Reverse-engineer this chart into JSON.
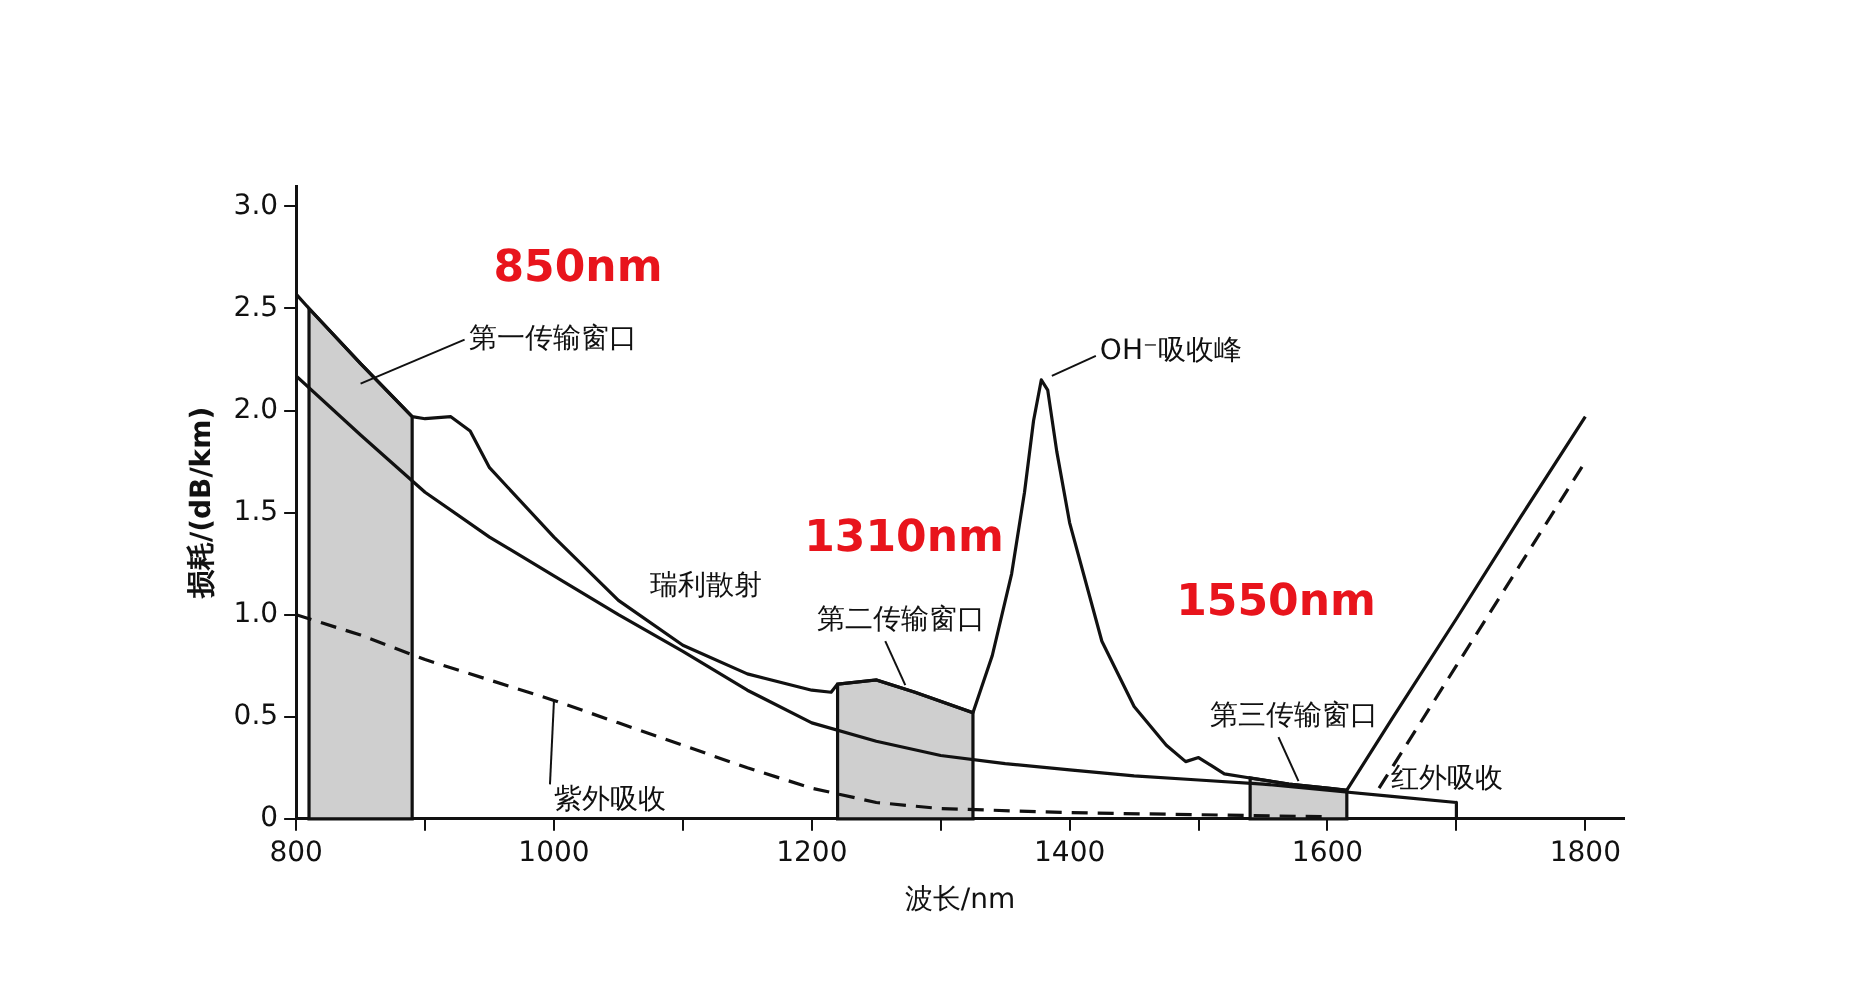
{
  "chart_data": {
    "type": "line",
    "xlabel": "波长/nm",
    "ylabel": "损耗/(dB/km)",
    "xlim": [
      800,
      1830
    ],
    "ylim": [
      0,
      3.1
    ],
    "xticks": [
      800,
      {
        "value": 900,
        "label": null
      },
      1000,
      {
        "value": 1100,
        "label": null
      },
      1200,
      {
        "value": 1300,
        "label": null
      },
      1400,
      {
        "value": 1500,
        "label": null
      },
      1600,
      {
        "value": 1700,
        "label": null
      },
      1800
    ],
    "yticks": [
      0,
      {
        "value": 0.5,
        "label": "0.5"
      },
      {
        "value": 1,
        "label": "1.0"
      },
      {
        "value": 1.5,
        "label": "1.5"
      },
      {
        "value": 2,
        "label": "2.0"
      },
      {
        "value": 2.5,
        "label": "2.5"
      },
      {
        "value": 3,
        "label": "3.0"
      }
    ],
    "grid": false,
    "legend": false,
    "marker": "none",
    "series": [
      {
        "color": "#111111",
        "line_style": "solid",
        "x": [
          800,
          810,
          850,
          890,
          900,
          920,
          935,
          950,
          1000,
          1050,
          1100,
          1150,
          1200,
          1215,
          1220,
          1250,
          1280,
          1325,
          1340,
          1355,
          1365,
          1372,
          1378,
          1383,
          1390,
          1400,
          1425,
          1450,
          1475,
          1490,
          1500,
          1510,
          1520,
          1540,
          1570,
          1600,
          1615,
          1650,
          1700,
          1750,
          1800
        ],
        "values": [
          2.57,
          2.5,
          2.23,
          1.97,
          1.96,
          1.97,
          1.9,
          1.72,
          1.38,
          1.07,
          0.85,
          0.71,
          0.63,
          0.62,
          0.66,
          0.68,
          0.62,
          0.52,
          0.8,
          1.2,
          1.6,
          1.95,
          2.15,
          2.1,
          1.8,
          1.45,
          0.87,
          0.55,
          0.36,
          0.28,
          0.3,
          0.26,
          0.22,
          0.2,
          0.17,
          0.15,
          0.14,
          0.49,
          0.98,
          1.48,
          1.97
        ]
      },
      {
        "name": "瑞利散射",
        "color": "#111111",
        "line_style": "solid",
        "x": [
          800,
          850,
          900,
          950,
          1000,
          1050,
          1100,
          1150,
          1200,
          1250,
          1300,
          1350,
          1400,
          1450,
          1500,
          1550,
          1600,
          1650,
          1700,
          1700
        ],
        "values": [
          2.17,
          1.88,
          1.6,
          1.38,
          1.19,
          1.0,
          0.82,
          0.63,
          0.47,
          0.38,
          0.31,
          0.27,
          0.24,
          0.21,
          0.19,
          0.17,
          0.14,
          0.11,
          0.08,
          0
        ]
      },
      {
        "name": "紫外吸收",
        "color": "#111111",
        "line_style": "dashed",
        "x": [
          800,
          850,
          900,
          950,
          1000,
          1050,
          1100,
          1150,
          1200,
          1250,
          1300,
          1400,
          1500,
          1600
        ],
        "values": [
          1.0,
          0.9,
          0.78,
          0.68,
          0.58,
          0.47,
          0.36,
          0.25,
          0.15,
          0.08,
          0.05,
          0.03,
          0.02,
          0.01
        ]
      },
      {
        "name": "红外吸收",
        "color": "#111111",
        "line_style": "dashed",
        "x": [
          1640,
          1700,
          1750,
          1800
        ],
        "values": [
          0.15,
          0.75,
          1.25,
          1.75
        ]
      }
    ],
    "bands": [
      {
        "axis": "x",
        "from": 810,
        "to": 890,
        "label": "第一传输窗口",
        "color": "#cfcfcf"
      },
      {
        "axis": "x",
        "from": 1220,
        "to": 1325,
        "label": "第二传输窗口",
        "color": "#cfcfcf"
      },
      {
        "axis": "x",
        "from": 1540,
        "to": 1615,
        "label": "第三传输窗口",
        "color": "#cfcfcf"
      }
    ],
    "annotations": [
      "850nm",
      "1310nm",
      "1550nm",
      {
        "text": "OH⁻吸收峰",
        "x": 1380,
        "y": 2.15
      }
    ]
  }
}
